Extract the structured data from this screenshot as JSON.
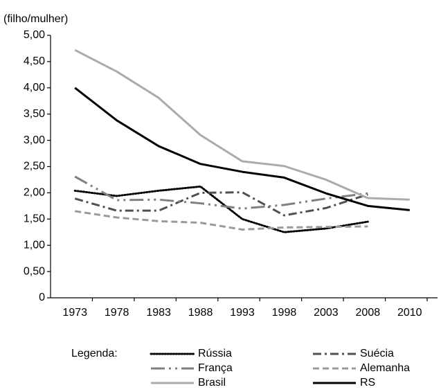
{
  "chart_data": {
    "type": "line",
    "ylabel": "(filho/mulher)",
    "legend_title": "Legenda:",
    "categories": [
      "1973",
      "1978",
      "1983",
      "1988",
      "1993",
      "1998",
      "2003",
      "2008",
      "2010"
    ],
    "ylim": [
      0,
      5
    ],
    "yticks": [
      0,
      {
        "value": 0.5,
        "label": "0,50"
      },
      {
        "value": 1,
        "label": "1,00"
      },
      {
        "value": 1.5,
        "label": "1,50"
      },
      {
        "value": 2,
        "label": "2,00"
      },
      {
        "value": 2.5,
        "label": "2,50"
      },
      {
        "value": 3,
        "label": "3,00"
      },
      {
        "value": 3.5,
        "label": "3,50"
      },
      {
        "value": 4,
        "label": "4,00"
      },
      {
        "value": 4.5,
        "label": "4,50"
      },
      {
        "value": 5,
        "label": "5,00"
      }
    ],
    "grid": false,
    "series": [
      {
        "name": "Rússia",
        "color": "#000000",
        "dash": "dotted",
        "values": [
          2.04,
          1.94,
          2.04,
          2.12,
          1.5,
          1.25,
          1.32,
          1.45,
          null
        ]
      },
      {
        "name": "Suécia",
        "color": "#505050",
        "dash": "dashdot",
        "values": [
          1.89,
          1.66,
          1.66,
          2.0,
          2.01,
          1.57,
          1.71,
          1.97,
          null
        ]
      },
      {
        "name": "França",
        "color": "#808080",
        "dash": "longdashdotdot",
        "values": [
          2.31,
          1.86,
          1.87,
          1.8,
          1.7,
          1.77,
          1.89,
          1.99,
          null
        ]
      },
      {
        "name": "Alemanha",
        "color": "#9a9a9a",
        "dash": "dashed",
        "values": [
          1.65,
          1.53,
          1.46,
          1.43,
          1.3,
          1.34,
          1.35,
          1.36,
          null
        ]
      },
      {
        "name": "Brasil",
        "color": "#ababab",
        "dash": "solid",
        "values": [
          4.72,
          4.31,
          3.81,
          3.1,
          2.6,
          2.51,
          2.25,
          1.9,
          1.87
        ]
      },
      {
        "name": "RS",
        "color": "#000000",
        "dash": "solid",
        "values": [
          4.0,
          3.38,
          2.89,
          2.55,
          2.4,
          2.29,
          1.99,
          1.75,
          1.67
        ]
      }
    ]
  }
}
